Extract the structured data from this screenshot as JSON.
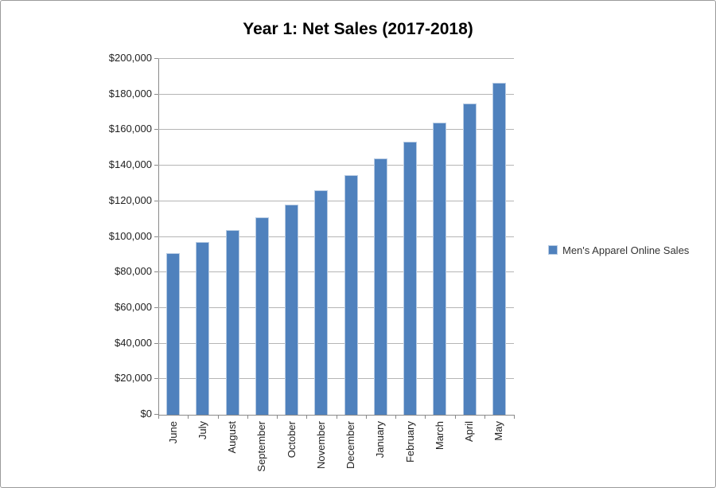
{
  "window": {
    "background": "#ffffff",
    "border_color": "#9b9b9b"
  },
  "chart_data": {
    "type": "bar",
    "title": "Year 1: Net Sales (2017-2018)",
    "categories": [
      "June",
      "July",
      "August",
      "September",
      "October",
      "November",
      "December",
      "January",
      "February",
      "March",
      "April",
      "May"
    ],
    "series": [
      {
        "name": "Men's Apparel Online Sales",
        "color": "#4f81bd",
        "border_color": "#b7cbe3",
        "values": [
          91000,
          97000,
          104000,
          111000,
          118000,
          126000,
          134500,
          144000,
          153500,
          164000,
          175000,
          186500
        ]
      }
    ],
    "xlabel": "",
    "ylabel": "",
    "ylim": [
      0,
      200000
    ],
    "ytick_interval": 20000,
    "ytick_labels": [
      "$0",
      "$20,000",
      "$40,000",
      "$60,000",
      "$80,000",
      "$100,000",
      "$120,000",
      "$140,000",
      "$160,000",
      "$180,000",
      "$200,000"
    ],
    "grid": true,
    "legend_position": "right",
    "colors": {
      "gridline": "#b5b5b5",
      "axis": "#8a8a8a",
      "tick_text": "#1f1f1f"
    }
  }
}
